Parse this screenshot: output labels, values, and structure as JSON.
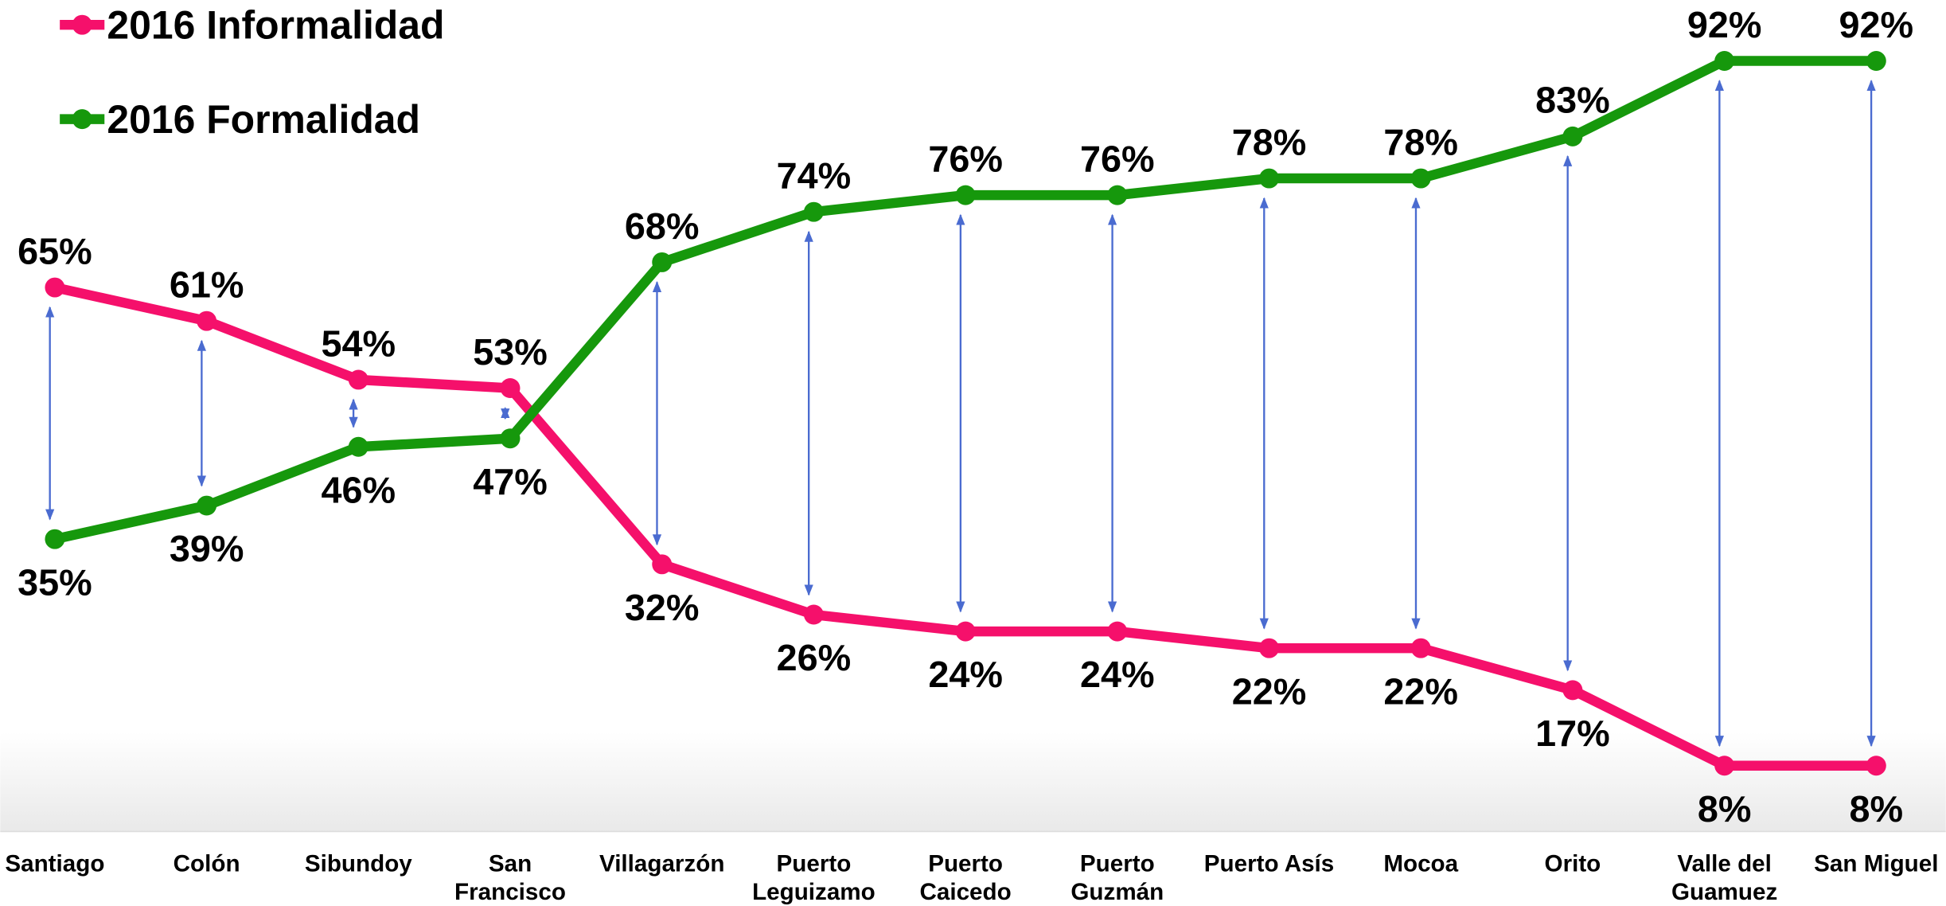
{
  "chart_data": {
    "type": "line",
    "categories": [
      [
        "Santiago"
      ],
      [
        "Colón"
      ],
      [
        "Sibundoy"
      ],
      [
        "San",
        "Francisco"
      ],
      [
        "Villagarzón"
      ],
      [
        "Puerto",
        "Leguizamo"
      ],
      [
        "Puerto",
        "Caicedo"
      ],
      [
        "Puerto",
        "Guzmán"
      ],
      [
        "Puerto Asís"
      ],
      [
        "Mocoa"
      ],
      [
        "Orito"
      ],
      [
        "Valle del",
        "Guamuez"
      ],
      [
        "San Miguel"
      ]
    ],
    "ylim": [
      0,
      100
    ],
    "legend": "top-left",
    "series": [
      {
        "name": "2016 Informalidad",
        "color": "#f5106b",
        "values": [
          65,
          61,
          54,
          53,
          32,
          26,
          24,
          24,
          22,
          22,
          17,
          8,
          8
        ],
        "value_labels": [
          "65%",
          "61%",
          "54%",
          "53%",
          "32%",
          "26%",
          "24%",
          "24%",
          "22%",
          "22%",
          "17%",
          "8%",
          "8%"
        ]
      },
      {
        "name": "2016 Formalidad",
        "color": "#16980c",
        "values": [
          35,
          39,
          46,
          47,
          68,
          74,
          76,
          76,
          78,
          78,
          83,
          92,
          92
        ],
        "value_labels": [
          "35%",
          "39%",
          "46%",
          "47%",
          "68%",
          "74%",
          "76%",
          "76%",
          "78%",
          "78%",
          "83%",
          "92%",
          "92%"
        ]
      }
    ]
  }
}
